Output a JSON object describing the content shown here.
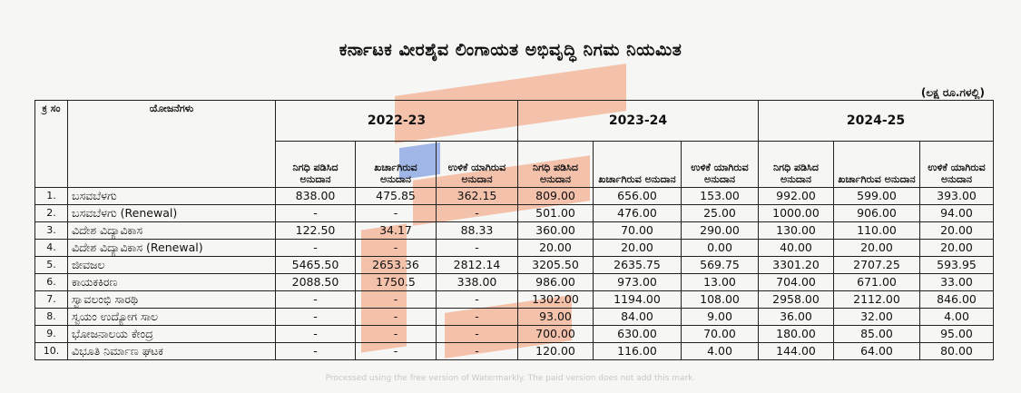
{
  "title": "ಕರ್ನಾಟಕ ವೀರಶೈವ ಲಿಂಗಾಯತ ಅಭಿವೃದ್ಧಿ ನಿಗಮ ನಿಯಮಿತ",
  "unit_note": "(ಲಕ್ಷ ರೂ.ಗಳಲ್ಲಿ)",
  "headers": {
    "sno": "ಕ್ರ ಸಂ",
    "scheme": "ಯೋಜನೆಗಳು",
    "years": [
      "2022-23",
      "2023-24",
      "2024-25"
    ],
    "sub": [
      "ನಿಗಧಿ ಪಡಿಸಿದ ಅನುದಾನ",
      "ಖರ್ಚಾಗಿರುವ ಅನುದಾನ",
      "ಉಳಿಕೆ ಯಾಗಿರುವ ಅನುದಾನ"
    ]
  },
  "rows": [
    {
      "sno": "1.",
      "name": "ಬಸವಬೆಳಗು",
      "v": [
        "838.00",
        "475.85",
        "362.15",
        "809.00",
        "656.00",
        "153.00",
        "992.00",
        "599.00",
        "393.00"
      ]
    },
    {
      "sno": "2.",
      "name": "ಬಸವಬೆಳಗು (Renewal)",
      "v": [
        "-",
        "-",
        "-",
        "501.00",
        "476.00",
        "25.00",
        "1000.00",
        "906.00",
        "94.00"
      ]
    },
    {
      "sno": "3.",
      "name": "ವಿದೇಶ ವಿದ್ಯಾವಿಕಾಸ",
      "v": [
        "122.50",
        "34.17",
        "88.33",
        "360.00",
        "70.00",
        "290.00",
        "130.00",
        "110.00",
        "20.00"
      ]
    },
    {
      "sno": "4.",
      "name": "ವಿದೇಶ ವಿದ್ಯಾವಿಕಾಸ (Renewal)",
      "v": [
        "-",
        "-",
        "-",
        "20.00",
        "20.00",
        "0.00",
        "40.00",
        "20.00",
        "20.00"
      ]
    },
    {
      "sno": "5.",
      "name": "ಜೀವಜಲ",
      "v": [
        "5465.50",
        "2653.36",
        "2812.14",
        "3205.50",
        "2635.75",
        "569.75",
        "3301.20",
        "2707.25",
        "593.95"
      ]
    },
    {
      "sno": "6.",
      "name": "ಕಾಯಕಕಿರಣ",
      "v": [
        "2088.50",
        "1750.5",
        "338.00",
        "986.00",
        "973.00",
        "13.00",
        "704.00",
        "671.00",
        "33.00"
      ]
    },
    {
      "sno": "7.",
      "name": "ಸ್ವಾವಲಂಭಿ ಸಾರಥಿ",
      "v": [
        "-",
        "-",
        "-",
        "1302.00",
        "1194.00",
        "108.00",
        "2958.00",
        "2112.00",
        "846.00"
      ]
    },
    {
      "sno": "8.",
      "name": "ಸ್ವಯಂ ಉದ್ಯೋಗ ಸಾಲ",
      "v": [
        "-",
        "-",
        "-",
        "93.00",
        "84.00",
        "9.00",
        "36.00",
        "32.00",
        "4.00"
      ]
    },
    {
      "sno": "9.",
      "name": "ಭೋಜನಾಲಯ ಕೇಂದ್ರ",
      "v": [
        "-",
        "-",
        "-",
        "700.00",
        "630.00",
        "70.00",
        "180.00",
        "85.00",
        "95.00"
      ]
    },
    {
      "sno": "10.",
      "name": "ವಿಭೂತಿ ನಿರ್ಮಾಣ ಘಟಕ",
      "v": [
        "-",
        "-",
        "-",
        "120.00",
        "116.00",
        "4.00",
        "144.00",
        "64.00",
        "80.00"
      ]
    }
  ],
  "footer": "Processed using the free version of Watermarkly. The paid version does not add this mark.",
  "colors": {
    "watermark_orange": "#f07846",
    "watermark_blue": "#5a82dc"
  }
}
